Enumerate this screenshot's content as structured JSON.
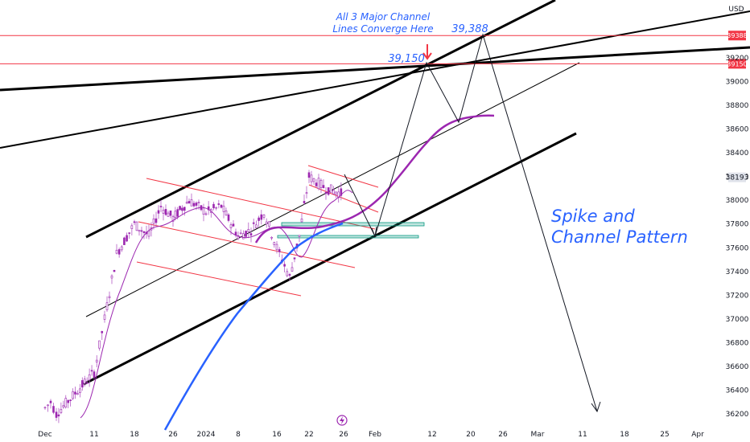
{
  "chart_data": {
    "type": "line",
    "currency": "USD",
    "price_ticks": [
      36200,
      36400,
      36600,
      36800,
      37000,
      37200,
      37400,
      37600,
      37800,
      38000,
      38200,
      38400,
      38600,
      38800,
      39000,
      39200
    ],
    "date_ticks": [
      "Dec",
      "11",
      "18",
      "26",
      "2024",
      "8",
      "16",
      "22",
      "26",
      "Feb",
      "12",
      "20",
      "26",
      "Mar",
      "11",
      "18",
      "25",
      "Apr"
    ],
    "last_price_label": "38193",
    "level_labels": [
      "39388",
      "39150"
    ],
    "ylim": [
      36100,
      39450
    ],
    "horizontal_levels": [
      {
        "value": 39388,
        "color": "#f23645"
      },
      {
        "value": 39150,
        "color": "#f23645"
      }
    ],
    "price_series": [
      {
        "x": "Dec",
        "y": 36250
      },
      {
        "x": "Dec 3",
        "y": 36300
      },
      {
        "x": "Dec 6",
        "y": 36200
      },
      {
        "x": "11",
        "y": 36550
      },
      {
        "x": "Dec 13",
        "y": 37000
      },
      {
        "x": "Dec 15",
        "y": 37550
      },
      {
        "x": "18",
        "y": 37800
      },
      {
        "x": "Dec 21",
        "y": 37700
      },
      {
        "x": "Dec 23",
        "y": 37950
      },
      {
        "x": "26",
        "y": 37850
      },
      {
        "x": "Dec 28",
        "y": 38000
      },
      {
        "x": "2024",
        "y": 37900
      },
      {
        "x": "Jan 5",
        "y": 37950
      },
      {
        "x": "8",
        "y": 37700
      },
      {
        "x": "Jan 11",
        "y": 37750
      },
      {
        "x": "Jan 13",
        "y": 37900
      },
      {
        "x": "16",
        "y": 37600
      },
      {
        "x": "Jan 18",
        "y": 37350
      },
      {
        "x": "Jan 20",
        "y": 37700
      },
      {
        "x": "22",
        "y": 38200
      },
      {
        "x": "Jan 24",
        "y": 38100
      },
      {
        "x": "26",
        "y": 38050
      }
    ],
    "annotations": {
      "converge_note": [
        "All 3 Major Channel",
        "Lines Converge Here"
      ],
      "label_39150": "39,150",
      "label_39388": "39,388",
      "pattern_title": [
        "Spike and",
        "Channel Pattern"
      ]
    },
    "colors": {
      "price": "#9c27b0",
      "ma_fast": "#9c27b0",
      "ma_slow": "#2962ff",
      "channel_lines": "#000000",
      "flag_lines": "#f23645",
      "annotation_text": "#2962ff",
      "arrow": "#f23645",
      "support_box": "#089981"
    },
    "grid": false,
    "legend": "none"
  }
}
